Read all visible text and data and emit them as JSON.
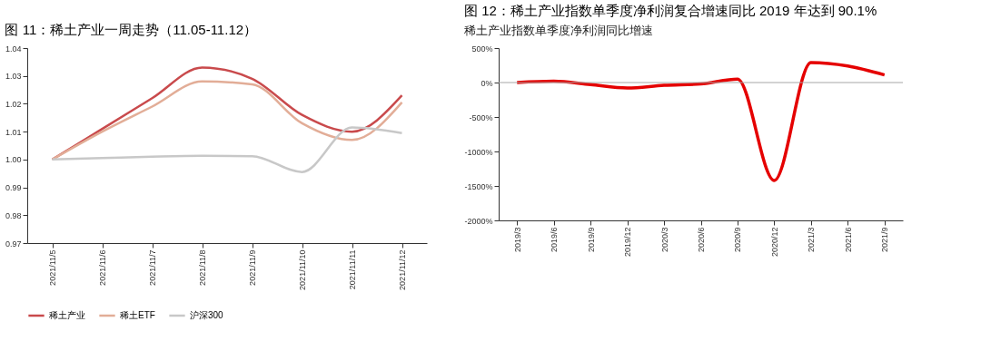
{
  "chart_data": [
    {
      "type": "line",
      "title": "图 11：稀土产业一周走势（11.05-11.12）",
      "categories": [
        "2021/11/5",
        "2021/11/6",
        "2021/11/7",
        "2021/11/8",
        "2021/11/9",
        "2021/11/10",
        "2021/11/11",
        "2021/11/12"
      ],
      "series": [
        {
          "name": "稀土产业",
          "color": "#c94a4c",
          "values": [
            1.0,
            1.011,
            1.022,
            1.033,
            1.029,
            1.016,
            1.01,
            1.023
          ]
        },
        {
          "name": "稀土ETF",
          "color": "#e2ad97",
          "values": [
            1.0,
            1.01,
            1.019,
            1.028,
            1.027,
            1.013,
            1.007,
            1.0205
          ]
        },
        {
          "name": "沪深300",
          "color": "#c8c8c8",
          "values": [
            1.0,
            1.0005,
            1.001,
            1.0013,
            1.0012,
            0.9955,
            1.0115,
            1.0095
          ]
        }
      ],
      "ylim": [
        0.97,
        1.04
      ],
      "yticks": [
        {
          "value": 0.97,
          "label": "0.97"
        },
        {
          "value": 0.98,
          "label": "0.98"
        },
        {
          "value": 0.99,
          "label": "0.99"
        },
        {
          "value": 1.0,
          "label": "1.00"
        },
        {
          "value": 1.01,
          "label": "1.01"
        },
        {
          "value": 1.02,
          "label": "1.02"
        },
        {
          "value": 1.03,
          "label": "1.03"
        },
        {
          "value": 1.04,
          "label": "1.04"
        }
      ],
      "grid": false,
      "legend": "bottom",
      "marker": "none",
      "line_style": "solid"
    },
    {
      "type": "line",
      "title": "图 12：稀土产业指数单季度净利润复合增速同比 2019 年达到 90.1%",
      "subtitle": "稀土产业指数单季度净利润同比增速",
      "categories": [
        "2019/3",
        "2019/6",
        "2019/9",
        "2019/12",
        "2020/3",
        "2020/6",
        "2020/9",
        "2020/12",
        "2021/3",
        "2021/6",
        "2021/9"
      ],
      "series": [
        {
          "color": "#e50000",
          "values": [
            0,
            20,
            -30,
            -80,
            -40,
            -20,
            50,
            -1420,
            290,
            240,
            110
          ]
        }
      ],
      "ylim": [
        -2000,
        500
      ],
      "yticks": [
        {
          "value": -2000,
          "label": "-2000%"
        },
        {
          "value": -1500,
          "label": "-1500%"
        },
        {
          "value": -1000,
          "label": "-1000%"
        },
        {
          "value": -500,
          "label": "-500%"
        },
        {
          "value": 0,
          "label": "0%"
        },
        {
          "value": 500,
          "label": "500%"
        }
      ],
      "ref_lines": [
        {
          "axis": "y",
          "value": 0,
          "color": "#a6a6a6"
        }
      ],
      "grid": false,
      "legend": false,
      "marker": "none",
      "line_style": "solid"
    }
  ]
}
